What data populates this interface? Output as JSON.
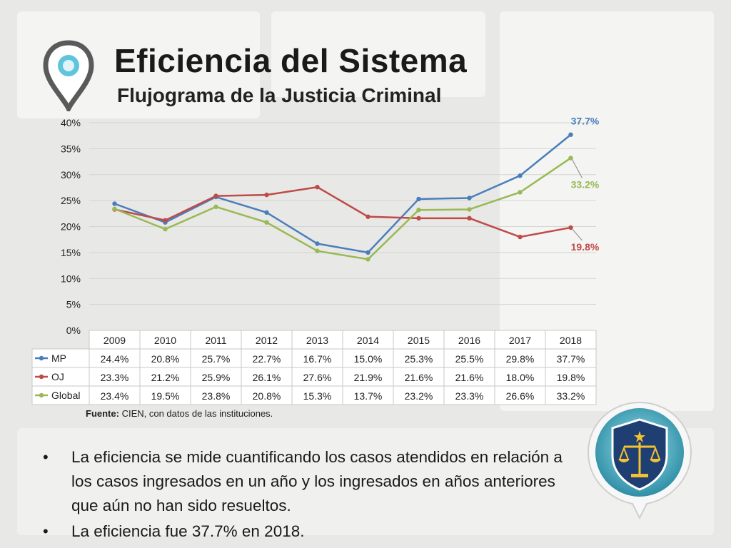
{
  "header": {
    "title": "Eficiencia del Sistema",
    "subtitle": "Flujograma de la Justicia Criminal"
  },
  "icons": {
    "pin": "location-pin-icon",
    "badge": "justice-scales-badge-icon"
  },
  "colors": {
    "MP": "#4a7ebb",
    "OJ": "#be4b48",
    "Global": "#98b954"
  },
  "chart_data": {
    "type": "line",
    "x": [
      "2009",
      "2010",
      "2011",
      "2012",
      "2013",
      "2014",
      "2015",
      "2016",
      "2017",
      "2018"
    ],
    "yticks": [
      "0%",
      "5%",
      "10%",
      "15%",
      "20%",
      "25%",
      "30%",
      "35%",
      "40%"
    ],
    "ylim": [
      0,
      40
    ],
    "grid": true,
    "series": [
      {
        "name": "MP",
        "values": [
          24.4,
          20.8,
          25.7,
          22.7,
          16.7,
          15.0,
          25.3,
          25.5,
          29.8,
          37.7
        ],
        "labels": [
          "24.4%",
          "20.8%",
          "25.7%",
          "22.7%",
          "16.7%",
          "15.0%",
          "25.3%",
          "25.5%",
          "29.8%",
          "37.7%"
        ],
        "end_label": "37.7%"
      },
      {
        "name": "OJ",
        "values": [
          23.3,
          21.2,
          25.9,
          26.1,
          27.6,
          21.9,
          21.6,
          21.6,
          18.0,
          19.8
        ],
        "labels": [
          "23.3%",
          "21.2%",
          "25.9%",
          "26.1%",
          "27.6%",
          "21.9%",
          "21.6%",
          "21.6%",
          "18.0%",
          "19.8%"
        ],
        "end_label": "19.8%"
      },
      {
        "name": "Global",
        "values": [
          23.4,
          19.5,
          23.8,
          20.8,
          15.3,
          13.7,
          23.2,
          23.3,
          26.6,
          33.2
        ],
        "labels": [
          "23.4%",
          "19.5%",
          "23.8%",
          "20.8%",
          "15.3%",
          "13.7%",
          "23.2%",
          "23.3%",
          "26.6%",
          "33.2%"
        ],
        "end_label": "33.2%"
      }
    ]
  },
  "source": {
    "label": "Fuente:",
    "text": " CIEN, con datos de las instituciones."
  },
  "bullets": [
    "La eficiencia se mide cuantificando los casos atendidos en relación a los casos ingresados en un año y los ingresados en años anteriores que aún no han sido resueltos.",
    "La eficiencia fue 37.7% en 2018."
  ],
  "bullet_glyph": "•"
}
